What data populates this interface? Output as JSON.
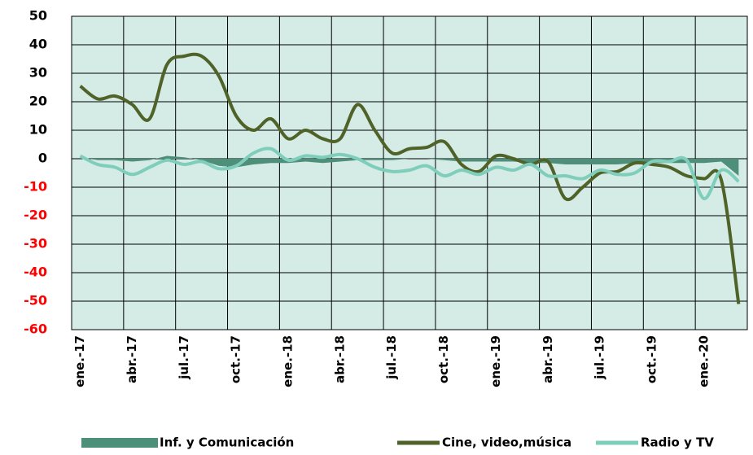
{
  "chart_data": {
    "type": "line",
    "categories": [
      "ene.-17",
      null,
      null,
      "abr.-17",
      null,
      null,
      "jul.-17",
      null,
      null,
      "oct.-17",
      null,
      null,
      "ene.-18",
      null,
      null,
      "abr.-18",
      null,
      null,
      "jul.-18",
      null,
      null,
      "oct.-18",
      null,
      null,
      "ene.-19",
      null,
      null,
      "abr.-19",
      null,
      null,
      "jul.-19",
      null,
      null,
      "oct.-19",
      null,
      null,
      "ene.-20",
      null,
      null
    ],
    "series": [
      {
        "name": "Inf. y Comunicación",
        "color": "#4e8f7a",
        "style": "area",
        "values": [
          0.5,
          -0.5,
          -0.5,
          -1,
          -0.5,
          1,
          0.5,
          -0.5,
          -2.5,
          -3,
          -2,
          -1.5,
          -1.5,
          -1,
          -1.5,
          -1,
          -0.5,
          -0.5,
          -0.5,
          0,
          0,
          -0.5,
          -1,
          -1,
          -1,
          -1,
          -1.5,
          -1.5,
          -2,
          -2,
          -2,
          -2,
          -1.5,
          -1.5,
          -1.5,
          -1.5,
          -1.5,
          -1,
          -6
        ]
      },
      {
        "name": "Cine, video,música",
        "color": "#4f6228",
        "style": "line",
        "values": [
          25.5,
          21,
          22,
          19,
          14,
          33,
          36,
          36,
          29,
          15,
          10,
          14,
          7,
          10,
          7,
          7,
          19,
          10,
          2,
          3.5,
          4,
          6,
          -2,
          -4.5,
          1,
          0,
          -2,
          -1,
          -14,
          -10,
          -5,
          -4.5,
          -1.5,
          -2,
          -3,
          -6,
          -7,
          -7.5,
          -51
        ]
      },
      {
        "name": "Radio y TV",
        "color": "#7fcdbb",
        "style": "line",
        "values": [
          1,
          -2,
          -3,
          -5.5,
          -3,
          -0.5,
          -2,
          -1,
          -3.5,
          -2.5,
          2,
          3.5,
          -0.5,
          1,
          0.5,
          1.5,
          0,
          -3,
          -4.5,
          -4,
          -2.5,
          -6,
          -4,
          -5.5,
          -3,
          -4,
          -2,
          -6,
          -6,
          -7,
          -4,
          -5.5,
          -5,
          -1,
          -1,
          -0.5,
          -14,
          -4,
          -8
        ]
      }
    ],
    "ylim": [
      -60,
      50
    ],
    "yticks": [
      -60,
      -50,
      -40,
      -30,
      -20,
      -10,
      0,
      10,
      20,
      30,
      40,
      50
    ],
    "grid": true,
    "plot_background": "#d5ebe6",
    "negative_tick_color": "#ff0000",
    "legend": "bottom"
  }
}
